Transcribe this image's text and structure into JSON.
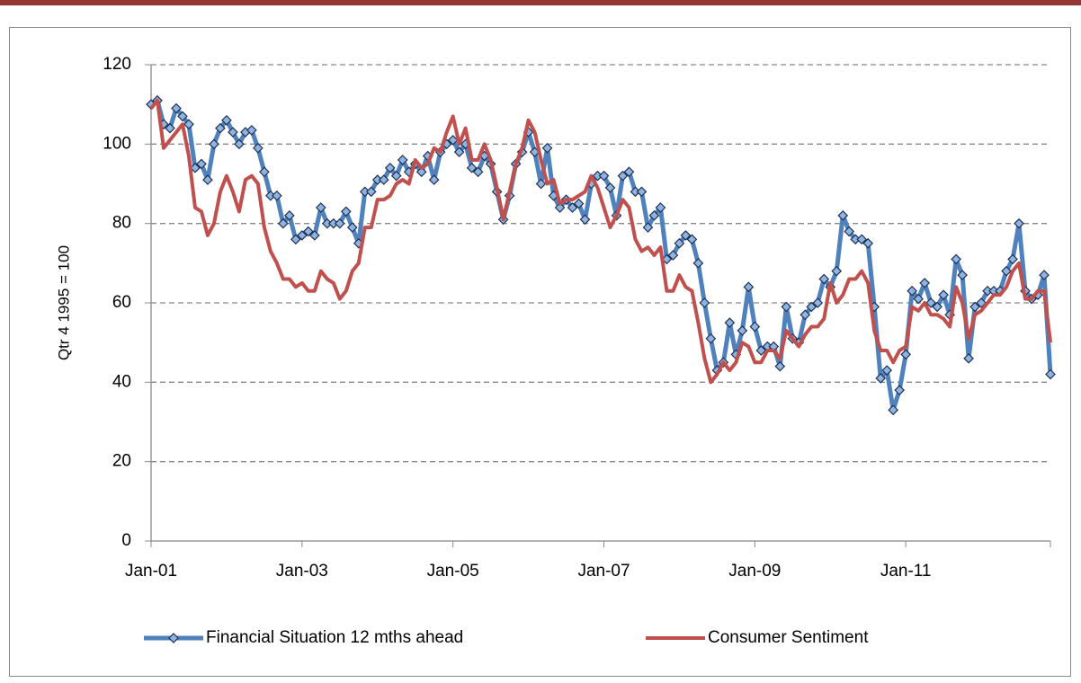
{
  "chart_data": {
    "type": "line",
    "ylabel": "Qtr 4 1995 = 100",
    "categories": [
      "Jan-01",
      null,
      null,
      null,
      null,
      null,
      null,
      null,
      null,
      null,
      null,
      null,
      null,
      null,
      null,
      null,
      null,
      null,
      null,
      null,
      null,
      null,
      null,
      null,
      "Jan-03",
      null,
      null,
      null,
      null,
      null,
      null,
      null,
      null,
      null,
      null,
      null,
      null,
      null,
      null,
      null,
      null,
      null,
      null,
      null,
      null,
      null,
      null,
      null,
      "Jan-05",
      null,
      null,
      null,
      null,
      null,
      null,
      null,
      null,
      null,
      null,
      null,
      null,
      null,
      null,
      null,
      null,
      null,
      null,
      null,
      null,
      null,
      null,
      null,
      "Jan-07",
      null,
      null,
      null,
      null,
      null,
      null,
      null,
      null,
      null,
      null,
      null,
      null,
      null,
      null,
      null,
      null,
      null,
      null,
      null,
      null,
      null,
      null,
      null,
      "Jan-09",
      null,
      null,
      null,
      null,
      null,
      null,
      null,
      null,
      null,
      null,
      null,
      null,
      null,
      null,
      null,
      null,
      null,
      null,
      null,
      null,
      null,
      null,
      null,
      "Jan-11",
      null,
      null,
      null,
      null,
      null,
      null,
      null,
      null,
      null,
      null,
      null,
      null,
      null,
      null,
      null,
      null,
      null,
      null,
      null,
      null,
      null,
      null,
      null
    ],
    "series": [
      {
        "name": "Financial Situation 12 mths ahead",
        "color": "#4f81bd",
        "marker": "diamond",
        "values": [
          110,
          111,
          105,
          104,
          109,
          107,
          105,
          94,
          95,
          91,
          100,
          104,
          106,
          103,
          100,
          103,
          103.5,
          99,
          93,
          87,
          87,
          80,
          82,
          76,
          77,
          78,
          77,
          84,
          80,
          80,
          80,
          83,
          79,
          75,
          88,
          88,
          91,
          91,
          94,
          92,
          96,
          93,
          95,
          93,
          97,
          91,
          98,
          100,
          101,
          98,
          100,
          94,
          93,
          97,
          95,
          88,
          81,
          87,
          95,
          98,
          103,
          98,
          90,
          99,
          87,
          84,
          86,
          84,
          85,
          81,
          90,
          92,
          92,
          89,
          82,
          92,
          93,
          88,
          88,
          79,
          82,
          84,
          71,
          72,
          75,
          77,
          76,
          70,
          60,
          51,
          43,
          45,
          55,
          47,
          53,
          64,
          54,
          48,
          49,
          49,
          44,
          59,
          51,
          50,
          57,
          59,
          60,
          66,
          64,
          68,
          82,
          78,
          76,
          76,
          75,
          59,
          41,
          43,
          33,
          38,
          47,
          63,
          61,
          65,
          60,
          59,
          62,
          57,
          71,
          67,
          46,
          59,
          60,
          63,
          63,
          63,
          68,
          71,
          80,
          63,
          61,
          62,
          67,
          42
        ]
      },
      {
        "name": "Consumer Sentiment",
        "color": "#c0504d",
        "values": [
          109,
          111,
          99,
          101,
          103,
          105,
          97,
          84,
          83,
          77,
          80,
          88,
          92,
          88,
          83,
          91,
          92,
          90,
          79,
          73,
          70,
          66,
          66,
          64,
          65,
          63,
          63,
          68,
          66,
          65,
          61,
          63,
          68,
          70,
          79,
          79,
          86,
          86,
          87,
          90,
          91,
          90,
          96,
          94,
          95,
          99,
          98,
          103,
          107,
          100,
          104,
          96,
          96,
          100,
          96,
          89,
          81,
          88,
          95,
          99,
          106,
          103,
          96,
          90,
          91,
          85,
          86,
          86,
          87,
          88,
          92,
          89,
          84,
          79,
          82,
          86,
          84,
          76,
          73,
          74,
          72,
          74,
          63,
          63,
          67,
          64,
          63,
          55,
          46,
          40,
          42,
          45,
          43,
          45,
          50,
          49,
          45,
          45,
          48,
          48,
          46,
          53,
          51,
          49,
          52,
          54,
          54,
          56,
          65,
          60,
          62,
          66,
          66,
          68,
          65,
          53,
          48,
          48,
          45,
          48,
          49,
          59,
          58,
          60,
          57,
          57,
          56,
          54,
          64,
          60,
          51,
          57,
          58,
          60,
          62,
          62,
          64,
          68,
          70,
          61,
          61,
          63,
          63,
          50
        ]
      }
    ],
    "ylim": [
      0,
      120
    ],
    "yticks": [
      0,
      20,
      40,
      60,
      80,
      100,
      120
    ],
    "grid": true,
    "legend": "bottom"
  }
}
